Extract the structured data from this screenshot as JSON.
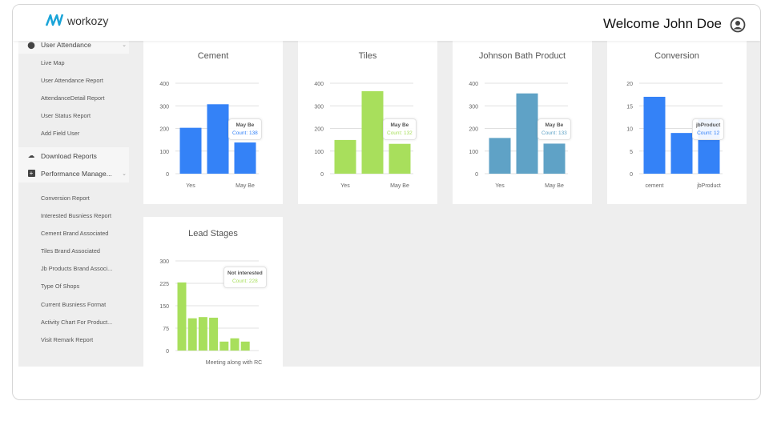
{
  "header": {
    "logo_text": "workozy",
    "welcome": "Welcome John Doe"
  },
  "sidebar": {
    "attendance_group": "User Attendance",
    "attendance_items": [
      "Live Map",
      "User Attendance Report",
      "AttendanceDetail Report",
      "User Status Report",
      "Add Field User"
    ],
    "download_reports": "Download Reports",
    "performance_group": "Performance Manage...",
    "performance_items": [
      "Conversion Report",
      "Interested Busniess Report",
      "Cement Brand Associated",
      "Tiles Brand Associated",
      "Jb Products Brand Associ...",
      "Type Of Shops",
      "Current Busniess Format",
      "Activity Chart For Product...",
      "Visit Remark Report"
    ]
  },
  "chart_data": [
    {
      "type": "bar",
      "title": "Cement",
      "categories": [
        "Yes",
        "",
        "May Be"
      ],
      "values": [
        203,
        307,
        138
      ],
      "ylim": [
        0,
        400
      ],
      "yticks": [
        0,
        100,
        200,
        300,
        400
      ],
      "color": "#3482f7",
      "tooltip": {
        "label": "May Be",
        "text": "Count: 138",
        "index": 2
      }
    },
    {
      "type": "bar",
      "title": "Tiles",
      "categories": [
        "Yes",
        "",
        "May Be"
      ],
      "values": [
        149,
        365,
        132
      ],
      "ylim": [
        0,
        400
      ],
      "yticks": [
        0,
        100,
        200,
        300,
        400
      ],
      "color": "#a8df5c",
      "tooltip": {
        "label": "May Be",
        "text": "Count: 132",
        "index": 2
      }
    },
    {
      "type": "bar",
      "title": "Johnson Bath Product",
      "categories": [
        "Yes",
        "",
        "May Be"
      ],
      "values": [
        158,
        355,
        133
      ],
      "ylim": [
        0,
        400
      ],
      "yticks": [
        0,
        100,
        200,
        300,
        400
      ],
      "color": "#5fa2c6",
      "tooltip": {
        "label": "May Be",
        "text": "Count: 133",
        "index": 2
      }
    },
    {
      "type": "bar",
      "title": "Conversion",
      "categories": [
        "cement",
        "",
        "jbProduct"
      ],
      "values": [
        17,
        9,
        12
      ],
      "ylim": [
        0,
        20
      ],
      "yticks": [
        0,
        5,
        10,
        15,
        20
      ],
      "color": "#3482f7",
      "tooltip": {
        "label": "jbProduct",
        "text": "Count: 12",
        "index": 2
      }
    },
    {
      "type": "bar",
      "title": "Lead Stages",
      "categories": [
        "",
        "",
        "",
        "",
        "",
        "",
        "",
        "Meeting along with RC"
      ],
      "values": [
        228,
        108,
        112,
        110,
        30,
        41,
        30,
        0
      ],
      "ylim": [
        0,
        300
      ],
      "yticks": [
        0,
        75,
        150,
        225,
        300
      ],
      "color": "#a8df5c",
      "tooltip": {
        "label": "Not interested",
        "text": "Count: 228",
        "index": 0
      }
    }
  ]
}
